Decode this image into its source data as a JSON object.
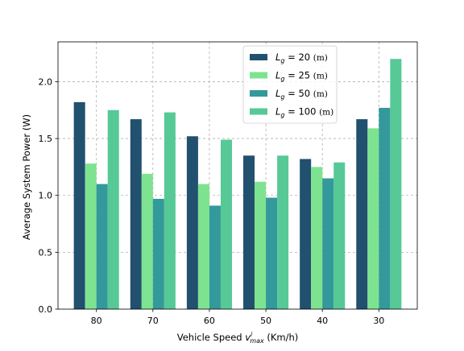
{
  "chart_data": {
    "type": "bar",
    "title": "",
    "xlabel": {
      "prefix": "Vehicle Speed ",
      "var": "v",
      "sup": "i",
      "sub": "max",
      "suffix": " (Km/h)"
    },
    "ylabel": "Average System Power (W)",
    "categories": [
      "80",
      "70",
      "60",
      "50",
      "40",
      "30"
    ],
    "ylim": [
      0,
      2.35
    ],
    "yticks": [
      0.0,
      0.5,
      1.0,
      1.5,
      2.0
    ],
    "ytick_labels": [
      "0.0",
      "0.5",
      "1.0",
      "1.5",
      "2.0"
    ],
    "grid": true,
    "legend_position": "top-center",
    "series": [
      {
        "name": "L_g = 20 (m)",
        "legend": {
          "value": "= 20",
          "unit": "(m)"
        },
        "color": "#22506f",
        "values": [
          1.82,
          1.67,
          1.52,
          1.35,
          1.32,
          1.67
        ]
      },
      {
        "name": "L_g = 25 (m)",
        "legend": {
          "value": "= 25",
          "unit": "(m)"
        },
        "color": "#7ee390",
        "values": [
          1.28,
          1.19,
          1.1,
          1.12,
          1.25,
          1.59
        ]
      },
      {
        "name": "L_g = 50 (m)",
        "legend": {
          "value": "= 50",
          "unit": "(m)"
        },
        "color": "#34999a",
        "values": [
          1.1,
          0.97,
          0.91,
          0.98,
          1.15,
          1.77
        ]
      },
      {
        "name": "L_g = 100 (m)",
        "legend": {
          "value": "= 100",
          "unit": "(m)"
        },
        "color": "#56c996",
        "values": [
          1.75,
          1.73,
          1.49,
          1.35,
          1.29,
          2.2
        ]
      }
    ],
    "legend_symbol": {
      "main": "L",
      "sub": "g"
    }
  }
}
